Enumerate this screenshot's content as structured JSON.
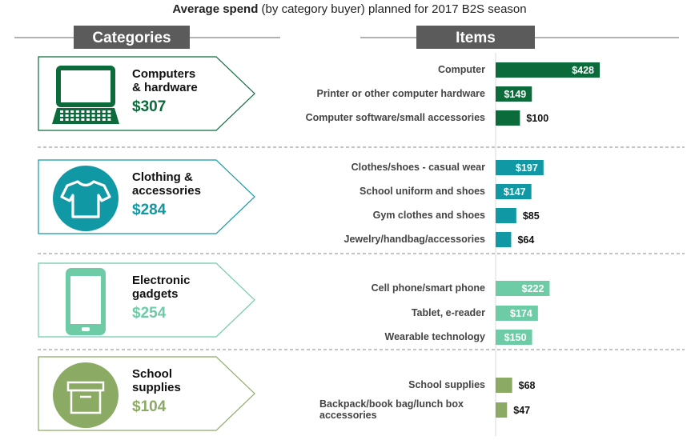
{
  "title": {
    "bold": "Average spend",
    "rest": " (by category buyer) planned for 2017 B2S season"
  },
  "headers": {
    "categories": "Categories",
    "items": "Items"
  },
  "colors": {
    "computers": "#0b6b3a",
    "clothing": "#1099a5",
    "electronics": "#6dcba6",
    "school": "#8bab64",
    "header_bg": "#5b5b5b"
  },
  "chart_data": {
    "type": "bar",
    "orientation": "horizontal",
    "xlim": [
      0,
      450
    ],
    "grid": false,
    "legend": "none",
    "groups": [
      {
        "name_lines": [
          "Computers",
          "& hardware"
        ],
        "total_label": "$307",
        "color_key": "computers",
        "icon": "laptop-icon",
        "items": [
          {
            "label_lines": [
              "Computer"
            ],
            "value": 428,
            "value_label": "$428"
          },
          {
            "label_lines": [
              "Printer or other computer hardware"
            ],
            "value": 149,
            "value_label": "$149"
          },
          {
            "label_lines": [
              "Computer software/small accessories"
            ],
            "value": 100,
            "value_label": "$100"
          }
        ]
      },
      {
        "name_lines": [
          "Clothing &",
          "accessories"
        ],
        "total_label": "$284",
        "color_key": "clothing",
        "icon": "tshirt-icon",
        "items": [
          {
            "label_lines": [
              "Clothes/shoes - casual wear"
            ],
            "value": 197,
            "value_label": "$197"
          },
          {
            "label_lines": [
              "School uniform and shoes"
            ],
            "value": 147,
            "value_label": "$147"
          },
          {
            "label_lines": [
              "Gym clothes and shoes"
            ],
            "value": 85,
            "value_label": "$85"
          },
          {
            "label_lines": [
              "Jewelry/handbag/accessories"
            ],
            "value": 64,
            "value_label": "$64"
          }
        ]
      },
      {
        "name_lines": [
          "Electronic",
          "gadgets"
        ],
        "total_label": "$254",
        "color_key": "electronics",
        "icon": "smartphone-icon",
        "items": [
          {
            "label_lines": [
              "Cell phone/smart phone"
            ],
            "value": 222,
            "value_label": "$222"
          },
          {
            "label_lines": [
              "Tablet, e-reader"
            ],
            "value": 174,
            "value_label": "$174"
          },
          {
            "label_lines": [
              "Wearable technology"
            ],
            "value": 150,
            "value_label": "$150"
          }
        ]
      },
      {
        "name_lines": [
          "School",
          "supplies"
        ],
        "total_label": "$104",
        "color_key": "school",
        "icon": "box-icon",
        "items": [
          {
            "label_lines": [
              "School supplies"
            ],
            "value": 68,
            "value_label": "$68"
          },
          {
            "label_lines": [
              "Backpack/book bag/lunch box",
              "accessories"
            ],
            "value": 47,
            "value_label": "$47"
          }
        ]
      }
    ]
  }
}
